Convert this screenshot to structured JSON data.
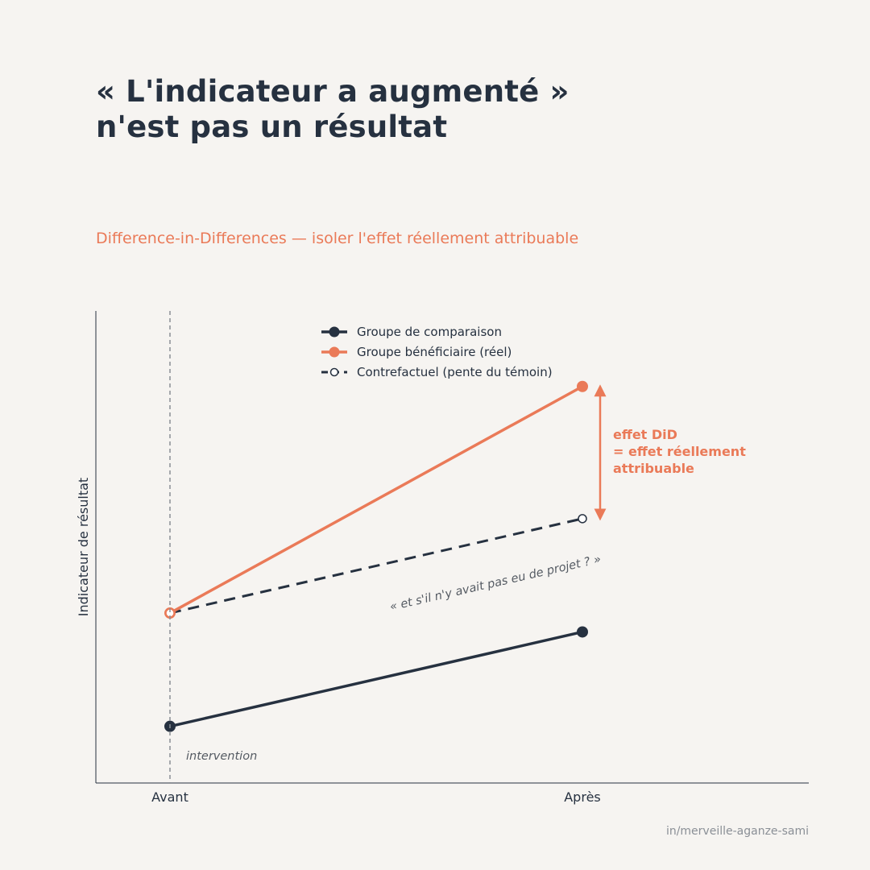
{
  "header": {
    "title_line1": "« L'indicateur a augmenté »",
    "title_line2": "n'est pas un résultat",
    "subtitle": "Difference-in-Differences — isoler l'effet réellement attribuable"
  },
  "footer": {
    "credit": "in/merveille-aganze-sami"
  },
  "colors": {
    "dark": "#263140",
    "accent": "#ea7a58",
    "background": "#f6f4f1",
    "muted": "#8a8f96"
  },
  "chart_data": {
    "type": "line",
    "categories": [
      "Avant",
      "Après"
    ],
    "ylabel": "Indicateur de résultat",
    "xlabel": "",
    "ylim": [
      0,
      10
    ],
    "grid": false,
    "legend_position": "top-center",
    "series": [
      {
        "name": "Groupe de comparaison",
        "values": [
          1.2,
          3.2
        ],
        "color": "#263140",
        "style": "solid",
        "marker": "filled"
      },
      {
        "name": "Groupe bénéficiaire (réel)",
        "values": [
          3.6,
          8.4
        ],
        "color": "#ea7a58",
        "style": "solid",
        "marker": "filled"
      },
      {
        "name": "Contrefactuel (pente du témoin)",
        "values": [
          3.6,
          5.6
        ],
        "color": "#263140",
        "style": "dashed",
        "marker": "hollow"
      }
    ],
    "annotations": {
      "intervention_label": "intervention",
      "counterfactual_note": "« et s'il n'y avait pas eu de projet ? »",
      "effect_lines": [
        "effet DiD",
        "= effet réellement",
        "attribuable"
      ]
    }
  }
}
